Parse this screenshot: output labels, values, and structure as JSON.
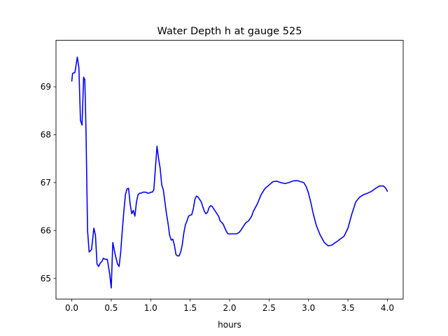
{
  "chart_data": {
    "type": "line",
    "title": "Water Depth h at gauge 525",
    "xlabel": "hours",
    "ylabel": "",
    "xlim": [
      -0.2,
      4.2
    ],
    "ylim": [
      64.57,
      69.97
    ],
    "xticks": [
      0.0,
      0.5,
      1.0,
      1.5,
      2.0,
      2.5,
      3.0,
      3.5,
      4.0
    ],
    "xtick_labels": [
      "0.0",
      "0.5",
      "1.0",
      "1.5",
      "2.0",
      "2.5",
      "3.0",
      "3.5",
      "4.0"
    ],
    "yticks": [
      65,
      66,
      67,
      68,
      69
    ],
    "ytick_labels": [
      "65",
      "66",
      "67",
      "68",
      "69"
    ],
    "grid": false,
    "series": [
      {
        "color": "#0000ff",
        "x": [
          0.0,
          0.01,
          0.04,
          0.07,
          0.09,
          0.11,
          0.13,
          0.15,
          0.165,
          0.18,
          0.2,
          0.22,
          0.25,
          0.28,
          0.3,
          0.32,
          0.34,
          0.36,
          0.38,
          0.4,
          0.42,
          0.45,
          0.48,
          0.5,
          0.52,
          0.55,
          0.58,
          0.6,
          0.62,
          0.64,
          0.66,
          0.68,
          0.7,
          0.72,
          0.74,
          0.76,
          0.78,
          0.8,
          0.82,
          0.84,
          0.86,
          0.88,
          0.9,
          0.92,
          0.94,
          0.96,
          0.98,
          1.0,
          1.02,
          1.04,
          1.08,
          1.1,
          1.12,
          1.14,
          1.16,
          1.18,
          1.2,
          1.22,
          1.24,
          1.26,
          1.28,
          1.3,
          1.32,
          1.34,
          1.36,
          1.38,
          1.4,
          1.42,
          1.44,
          1.46,
          1.48,
          1.5,
          1.52,
          1.54,
          1.56,
          1.58,
          1.6,
          1.62,
          1.64,
          1.66,
          1.68,
          1.7,
          1.72,
          1.74,
          1.76,
          1.78,
          1.8,
          1.82,
          1.84,
          1.86,
          1.88,
          1.9,
          1.92,
          1.94,
          1.96,
          1.98,
          2.0,
          2.02,
          2.04,
          2.06,
          2.08,
          2.1,
          2.12,
          2.14,
          2.16,
          2.18,
          2.2,
          2.22,
          2.24,
          2.26,
          2.28,
          2.3,
          2.35,
          2.4,
          2.45,
          2.5,
          2.55,
          2.6,
          2.65,
          2.7,
          2.75,
          2.78,
          2.82,
          2.86,
          2.9,
          2.94,
          2.97,
          3.0,
          3.03,
          3.06,
          3.1,
          3.15,
          3.2,
          3.25,
          3.3,
          3.34,
          3.37,
          3.4,
          3.45,
          3.5,
          3.55,
          3.6,
          3.65,
          3.7,
          3.75,
          3.8,
          3.85,
          3.9,
          3.95,
          3.98,
          4.0
        ],
        "y": [
          69.12,
          69.28,
          69.3,
          69.62,
          69.4,
          68.3,
          68.2,
          69.2,
          69.15,
          68.1,
          66.0,
          65.55,
          65.6,
          66.05,
          65.9,
          65.3,
          65.25,
          65.32,
          65.35,
          65.42,
          65.4,
          65.4,
          65.1,
          64.8,
          65.75,
          65.5,
          65.3,
          65.25,
          65.55,
          66.0,
          66.4,
          66.75,
          66.87,
          66.88,
          66.55,
          66.35,
          66.42,
          66.3,
          66.6,
          66.75,
          66.78,
          66.78,
          66.8,
          66.8,
          66.8,
          66.78,
          66.78,
          66.8,
          66.8,
          66.85,
          67.76,
          67.5,
          67.3,
          66.95,
          66.85,
          66.6,
          66.35,
          66.15,
          65.9,
          65.8,
          65.82,
          65.7,
          65.5,
          65.47,
          65.47,
          65.55,
          65.7,
          65.95,
          66.12,
          66.2,
          66.3,
          66.32,
          66.33,
          66.45,
          66.65,
          66.72,
          66.7,
          66.65,
          66.6,
          66.5,
          66.4,
          66.35,
          66.38,
          66.48,
          66.52,
          66.5,
          66.45,
          66.4,
          66.35,
          66.3,
          66.2,
          66.17,
          66.13,
          66.05,
          65.98,
          65.93,
          65.93,
          65.93,
          65.93,
          65.93,
          65.93,
          65.94,
          65.96,
          66.0,
          66.05,
          66.1,
          66.15,
          66.18,
          66.2,
          66.25,
          66.3,
          66.4,
          66.55,
          66.75,
          66.88,
          66.95,
          67.02,
          67.03,
          67.0,
          66.98,
          67.0,
          67.02,
          67.04,
          67.04,
          67.02,
          67.0,
          66.92,
          66.78,
          66.58,
          66.35,
          66.1,
          65.9,
          65.75,
          65.68,
          65.7,
          65.75,
          65.78,
          65.82,
          65.88,
          66.05,
          66.35,
          66.6,
          66.7,
          66.75,
          66.78,
          66.82,
          66.88,
          66.93,
          66.93,
          66.88,
          66.82
        ]
      }
    ]
  }
}
